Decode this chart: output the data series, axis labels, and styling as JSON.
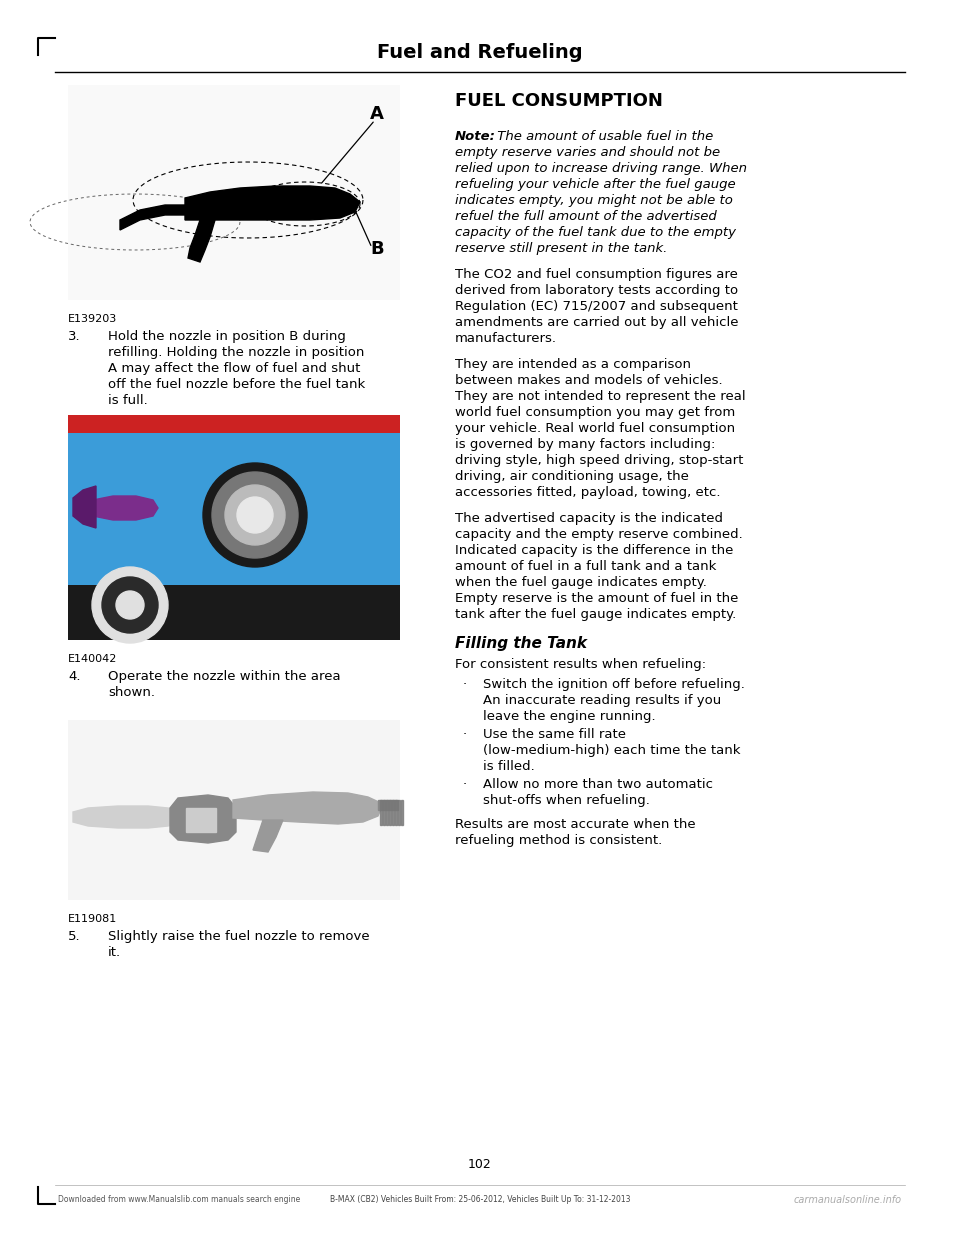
{
  "page_title": "Fuel and Refueling",
  "page_number": "102",
  "bg_color": "#ffffff",
  "title_color": "#000000",
  "text_color": "#000000",
  "img1_label": "E139203",
  "img2_label": "E140042",
  "img3_label": "E119081",
  "right_col_title": "FUEL CONSUMPTION",
  "note_label": "Note:",
  "note_text": "The amount of usable fuel in the empty reserve varies and should not be relied upon to increase driving range. When refueling your vehicle after the fuel gauge indicates empty, you might not be able to refuel the full amount of the advertised capacity of the fuel tank due to the empty reserve still present in the tank.",
  "para1": "The CO2 and fuel consumption figures are derived from laboratory tests according to Regulation (EC) 715/2007 and subsequent amendments are carried out by all vehicle manufacturers.",
  "para2": "They are intended as a comparison between makes and models of vehicles. They are not intended to represent the real world fuel consumption you may get from your vehicle. Real world fuel consumption is governed by many factors including: driving style, high speed driving, stop-start driving, air conditioning usage, the accessories fitted, payload, towing, etc.",
  "para3": "The advertised capacity is the indicated capacity and the empty reserve combined. Indicated capacity is the difference in the amount of fuel in a full tank and a tank when the fuel gauge indicates empty. Empty reserve is the amount of fuel in the tank after the fuel gauge indicates empty.",
  "filling_tank_title": "Filling the Tank",
  "filling_tank_intro": "For consistent results when refueling:",
  "bullet_dot": "·",
  "bullet1_line1": "Switch the ignition off before refueling.",
  "bullet1_line2": "An inaccurate reading results if you",
  "bullet1_line3": "leave the engine running.",
  "bullet2_line1": "Use the same fill rate",
  "bullet2_line2": "(low-medium-high) each time the tank",
  "bullet2_line3": "is filled.",
  "bullet3_line1": "Allow no more than two automatic",
  "bullet3_line2": "shut-offs when refueling.",
  "closing_line1": "Results are most accurate when the",
  "closing_line2": "refueling method is consistent.",
  "footer_left": "Downloaded from www.Manualslib.com manuals search engine",
  "footer_url": "www.Manualslib.com",
  "footer_center": "B-MAX (CB2) Vehicles Built From: 25-06-2012, Vehicles Built Up To: 31-12-2013",
  "footer_right": "carmanualsonline.info",
  "step3_num": "3.",
  "step3_t1": "Hold the nozzle in position B during",
  "step3_t2": "refilling. Holding the nozzle in position",
  "step3_t3": "A may affect the flow of fuel and shut",
  "step3_t4": "off the fuel nozzle before the fuel tank",
  "step3_t5": "is full.",
  "step4_num": "4.",
  "step4_t1": "Operate the nozzle within the area",
  "step4_t2": "shown.",
  "step5_num": "5.",
  "step5_t1": "Slightly raise the fuel nozzle to remove",
  "step5_t2": "it."
}
